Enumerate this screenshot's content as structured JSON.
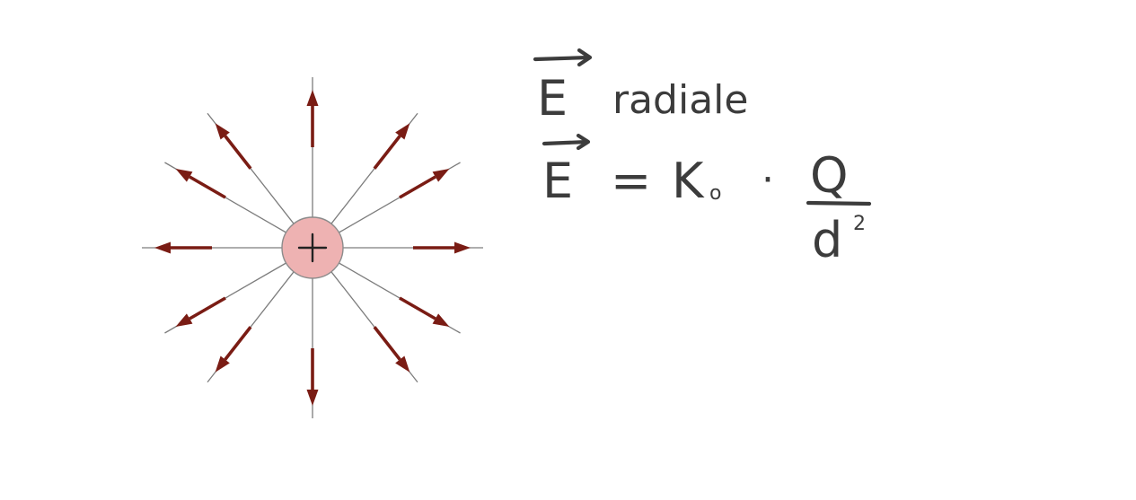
{
  "diagram": {
    "charge": {
      "sign": "+",
      "fill_color": "#eeb2b2"
    },
    "field_line_count": 12,
    "arrow_direction": "outward",
    "arrow_color": "#7a1c14",
    "line_color": "#7d7d7d"
  },
  "notes": {
    "line1": {
      "symbol": "E",
      "text": "radiale"
    },
    "line2": {
      "symbol": "E",
      "equals": "=",
      "constant": "K",
      "constant_subscript": "o",
      "dot": "·",
      "numerator": "Q",
      "denominator": "d",
      "exponent": "2"
    }
  }
}
